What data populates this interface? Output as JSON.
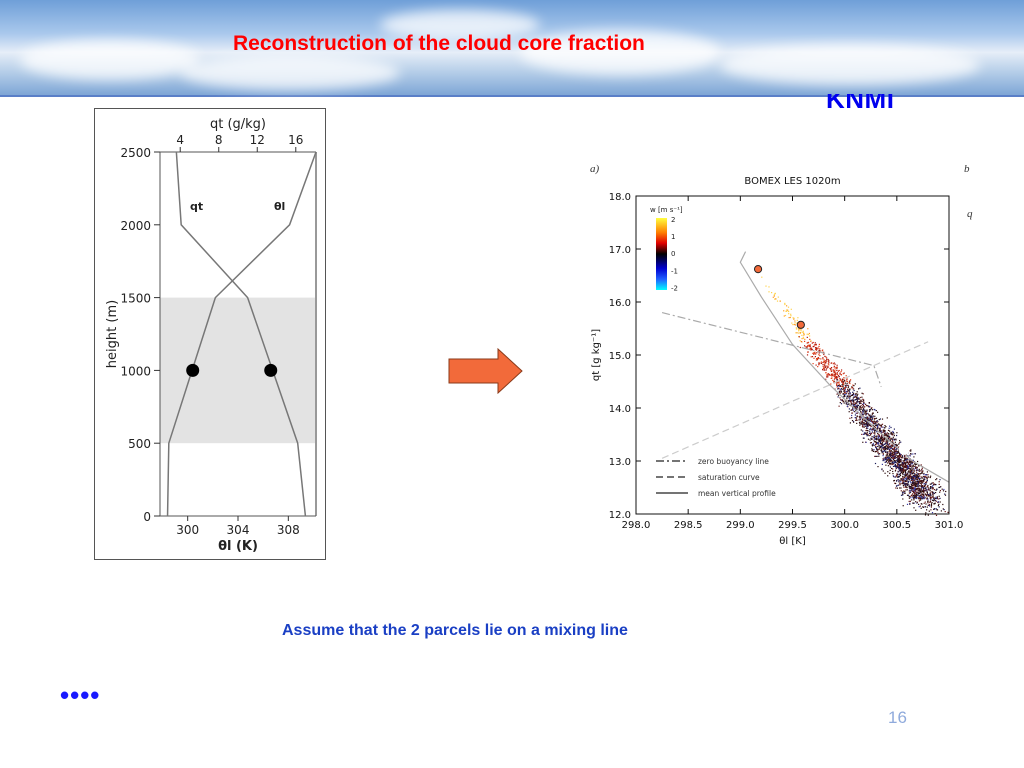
{
  "slide": {
    "title": "Reconstruction of the cloud core fraction",
    "logo": "KNMI",
    "caption": "Assume that the 2 parcels lie on a mixing line",
    "bullet_dots": "••••",
    "page_number": "16",
    "fragments": {
      "a": "a)",
      "b": "b",
      "q": "q"
    },
    "colors": {
      "title": "#ff0000",
      "caption": "#1a3fc4",
      "arrow": "#f26a3a",
      "logo": "#0000ee"
    }
  },
  "chart_data": [
    {
      "type": "line",
      "name": "profiles",
      "ylabel": "height (m)",
      "xlabel": "θl (K)",
      "x2label": "qt (g/kg)",
      "ylim": [
        0,
        2500
      ],
      "xlim": [
        297.8,
        310.2
      ],
      "x2lim": [
        1.9,
        18.1
      ],
      "yticks": [
        "0",
        "500",
        "1000",
        "1500",
        "2000",
        "2500"
      ],
      "xticks": [
        "300",
        "304",
        "308"
      ],
      "x2ticks": [
        "4",
        "8",
        "12",
        "16"
      ],
      "shaded_band": [
        500,
        1500
      ],
      "series": [
        {
          "name": "θl",
          "label": "θl",
          "axis": "bottom",
          "height": [
            0,
            500,
            1500,
            2000,
            2500
          ],
          "values": [
            298.4,
            298.5,
            302.2,
            308.1,
            310.2
          ]
        },
        {
          "name": "qt",
          "label": "qt",
          "axis": "top",
          "height": [
            0,
            500,
            1500,
            2000,
            2500
          ],
          "values": [
            17.0,
            16.2,
            11.0,
            4.1,
            3.6
          ]
        }
      ],
      "markers": [
        {
          "series": "θl",
          "height": 1000,
          "value": 300.4
        },
        {
          "series": "qt",
          "height": 1000,
          "value": 13.4
        }
      ]
    },
    {
      "type": "scatter",
      "name": "bomex",
      "title": "BOMEX LES   1020m",
      "xlabel": "θl  [K]",
      "ylabel": "qt  [g kg⁻¹]",
      "xlim": [
        298.0,
        301.0
      ],
      "ylim": [
        12.0,
        18.0
      ],
      "xticks": [
        "298.0",
        "298.5",
        "299.0",
        "299.5",
        "300.0",
        "300.5",
        "301.0"
      ],
      "yticks": [
        "12.0",
        "13.0",
        "14.0",
        "15.0",
        "16.0",
        "17.0",
        "18.0"
      ],
      "colorbar": {
        "label": "w [m s⁻¹]",
        "ticks": [
          "2",
          "1",
          "0",
          "-1",
          "-2"
        ],
        "range": [
          -2,
          2
        ]
      },
      "scatter_cloud": {
        "from": [
          299.15,
          16.6
        ],
        "to": [
          300.78,
          12.3
        ],
        "points": 2600
      },
      "legend": [
        {
          "label": "zero buoyancy line",
          "style": "dashdot"
        },
        {
          "label": "saturation curve",
          "style": "dashed"
        },
        {
          "label": "mean vertical profile",
          "style": "solid"
        }
      ],
      "lines": {
        "zero_buoyancy": {
          "x": [
            298.25,
            300.28,
            300.35
          ],
          "y": [
            15.8,
            14.8,
            14.4
          ]
        },
        "saturation": {
          "x": [
            298.25,
            300.8
          ],
          "y": [
            13.05,
            15.25
          ]
        },
        "mean_profile": {
          "x": [
            299.05,
            299.0,
            299.2,
            299.5,
            299.85,
            300.3,
            300.65,
            301.0
          ],
          "y": [
            16.95,
            16.75,
            16.1,
            15.2,
            14.45,
            13.6,
            13.0,
            12.6
          ]
        }
      },
      "parcels": [
        {
          "x": 299.17,
          "y": 16.62,
          "color": "#f26a3a"
        },
        {
          "x": 299.58,
          "y": 15.57,
          "color": "#f26a3a"
        }
      ],
      "mean_point": {
        "x": 300.57,
        "y": 13.22
      }
    }
  ]
}
